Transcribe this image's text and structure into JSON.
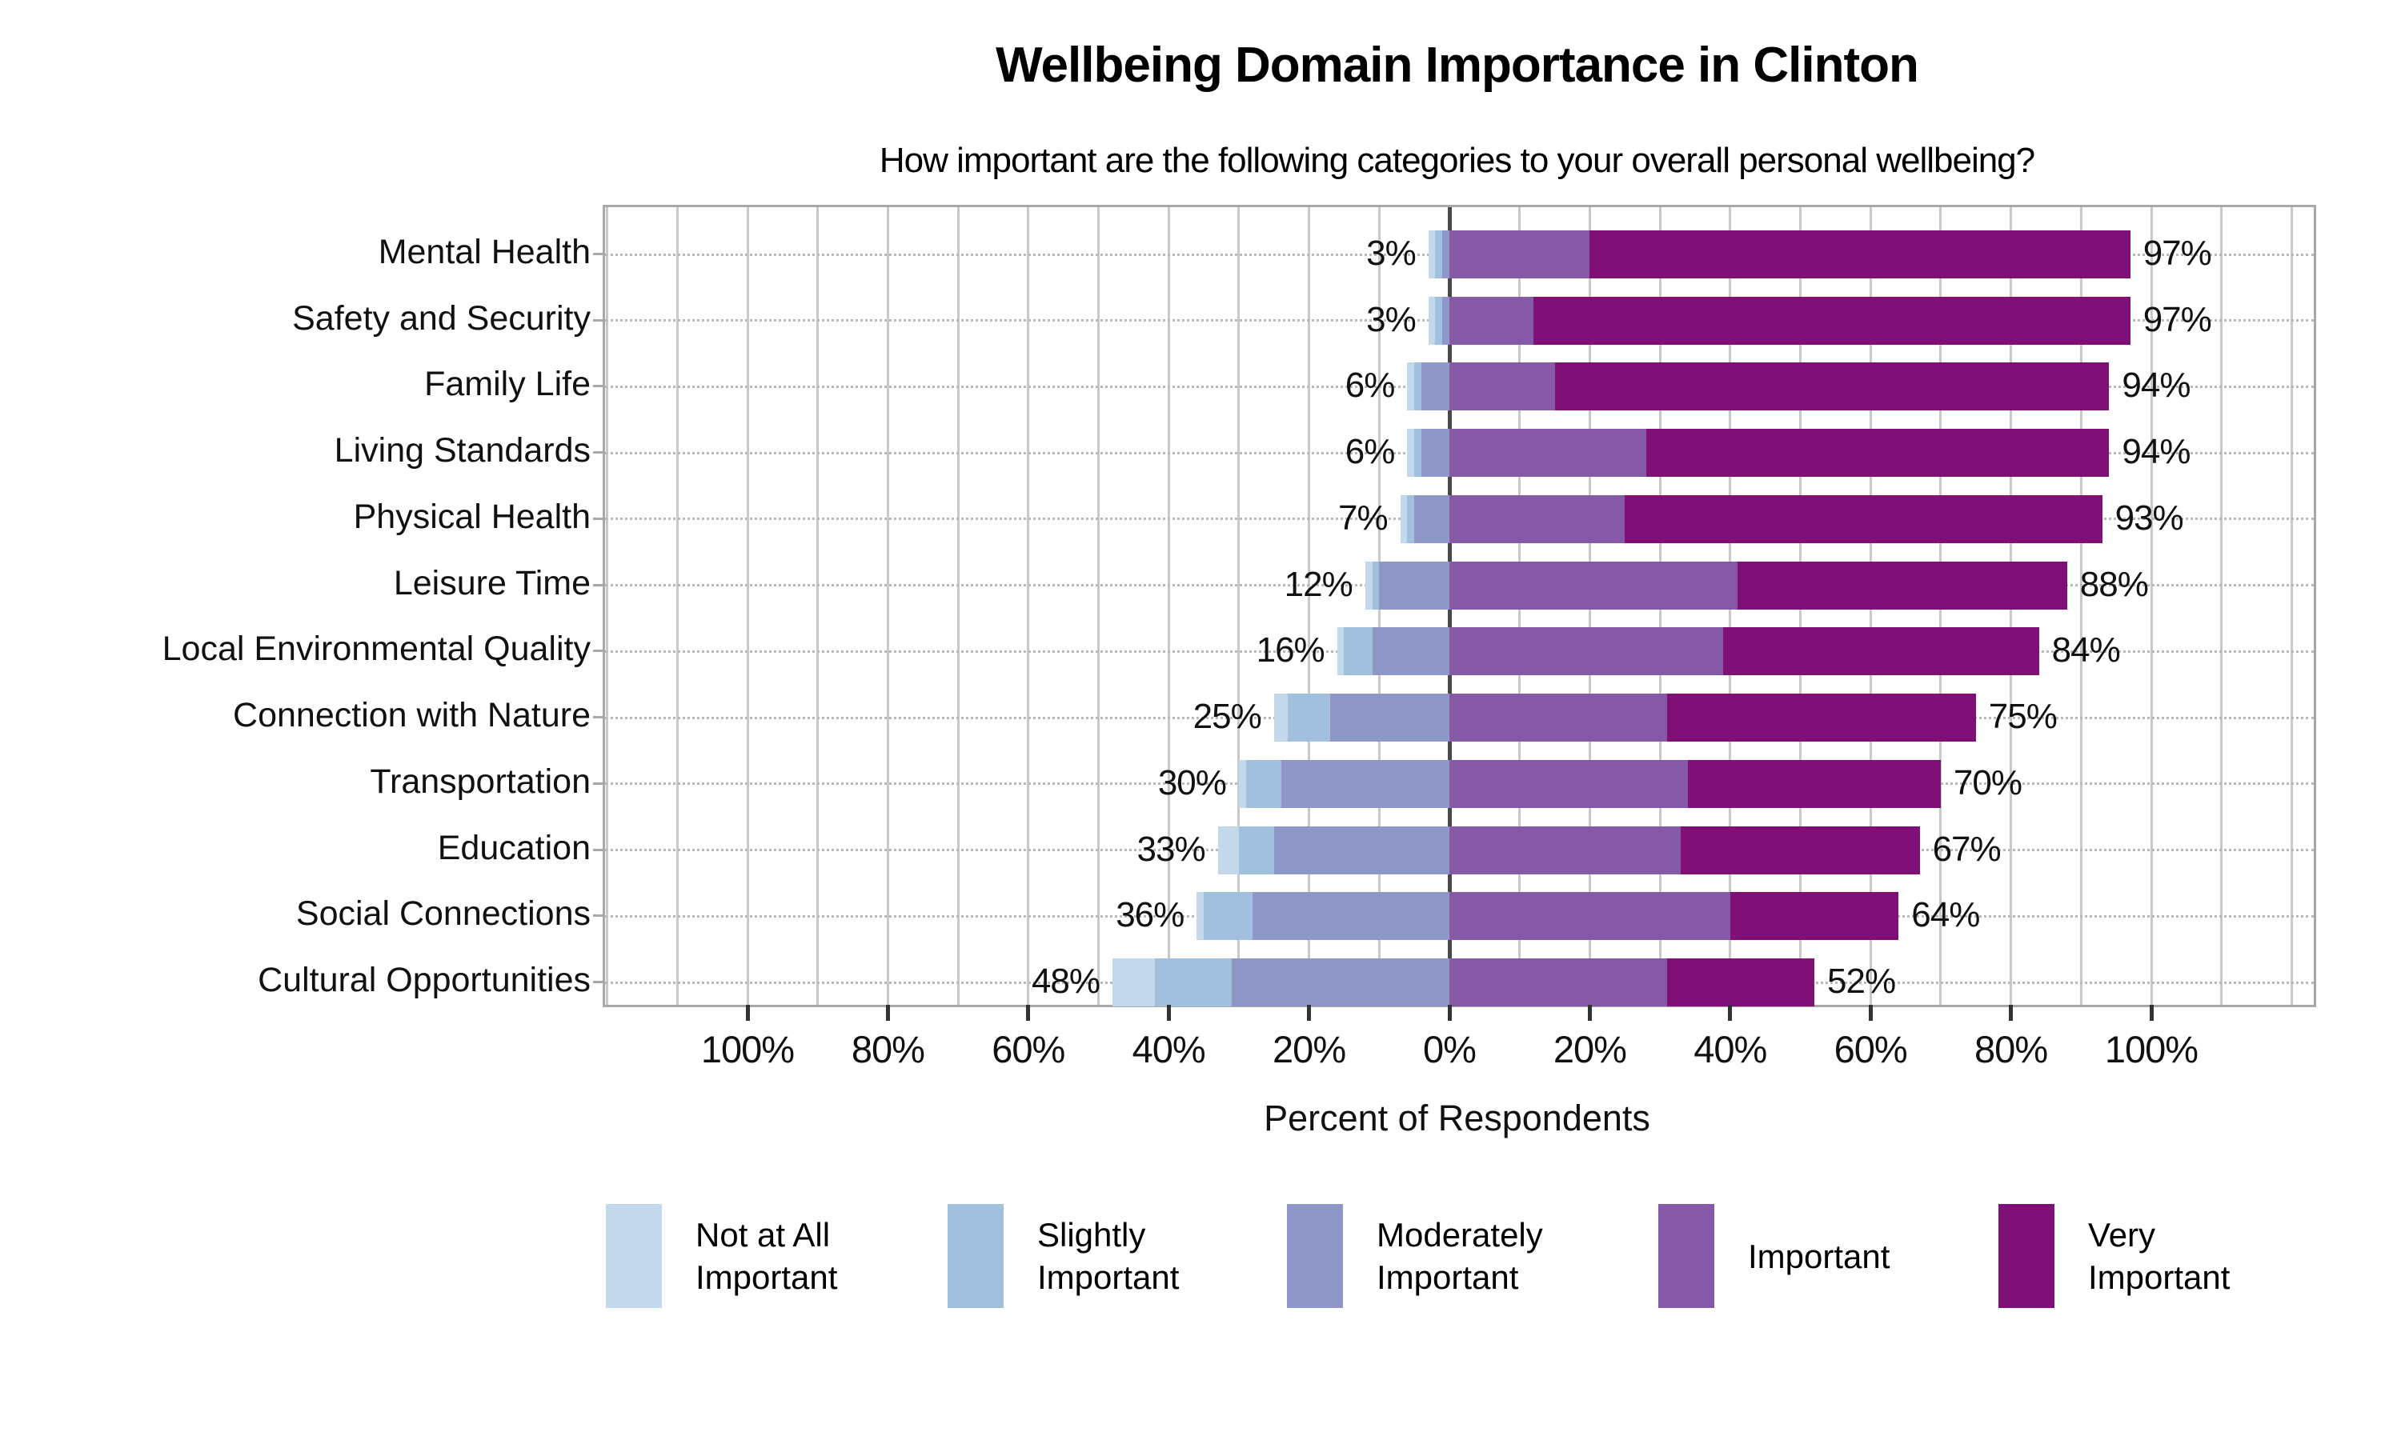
{
  "page": {
    "background": "#ffffff"
  },
  "chart_data": {
    "type": "bar",
    "variant": "diverging-stacked-bar",
    "title": "Wellbeing Domain Importance in Clinton",
    "subtitle": "How important are the following categories to your overall personal wellbeing?",
    "xlabel": "Percent of Respondents",
    "categories": [
      "Mental Health",
      "Safety and Security",
      "Family Life",
      "Living Standards",
      "Physical Health",
      "Leisure Time",
      "Local Environmental Quality",
      "Connection with Nature",
      "Transportation",
      "Education",
      "Social Connections",
      "Cultural Opportunities"
    ],
    "series": [
      {
        "name": "Not at All Important",
        "color": "#C4D8EB",
        "side": "negative",
        "values": [
          1,
          1,
          1,
          1,
          1,
          1,
          1,
          2,
          1,
          3,
          1,
          6
        ]
      },
      {
        "name": "Slightly Important",
        "color": "#A1C0DE",
        "side": "negative",
        "values": [
          1,
          1,
          1,
          1,
          1,
          1,
          4,
          6,
          5,
          5,
          7,
          11
        ]
      },
      {
        "name": "Moderately Important",
        "color": "#8E97C8",
        "side": "negative",
        "values": [
          1,
          1,
          4,
          4,
          5,
          10,
          11,
          17,
          24,
          25,
          28,
          31
        ]
      },
      {
        "name": "Important",
        "color": "#8659A7",
        "side": "positive",
        "values": [
          20,
          12,
          15,
          28,
          25,
          41,
          39,
          31,
          34,
          33,
          40,
          31
        ]
      },
      {
        "name": "Very Important",
        "color": "#7F1078",
        "side": "positive",
        "values": [
          77,
          85,
          79,
          66,
          68,
          47,
          45,
          44,
          36,
          34,
          24,
          21
        ]
      }
    ],
    "low_labels": [
      "3%",
      "3%",
      "6%",
      "6%",
      "7%",
      "12%",
      "16%",
      "25%",
      "30%",
      "33%",
      "36%",
      "48%"
    ],
    "high_labels": [
      "97%",
      "97%",
      "94%",
      "94%",
      "93%",
      "88%",
      "84%",
      "75%",
      "70%",
      "67%",
      "64%",
      "52%"
    ],
    "low_totals": [
      3,
      3,
      6,
      6,
      7,
      12,
      16,
      25,
      30,
      33,
      36,
      48
    ],
    "high_totals": [
      97,
      97,
      94,
      94,
      93,
      88,
      84,
      75,
      70,
      67,
      64,
      52
    ],
    "x_ticks": [
      {
        "value": -100,
        "label": "100%"
      },
      {
        "value": -80,
        "label": "80%"
      },
      {
        "value": -60,
        "label": "60%"
      },
      {
        "value": -40,
        "label": "40%"
      },
      {
        "value": -20,
        "label": "20%"
      },
      {
        "value": 0,
        "label": "0%"
      },
      {
        "value": 20,
        "label": "20%"
      },
      {
        "value": 40,
        "label": "40%"
      },
      {
        "value": 60,
        "label": "60%"
      },
      {
        "value": 80,
        "label": "80%"
      },
      {
        "value": 100,
        "label": "100%"
      }
    ],
    "xlim": [
      -120,
      123
    ],
    "gridline_step_pct": 10,
    "grid": {
      "vertical": "light gray every 10%",
      "zero_line": "dark gray",
      "row_guides": "dotted light gray"
    },
    "legend_position": "bottom"
  },
  "legend": {
    "items": [
      {
        "lines": [
          "Not at All",
          "Important"
        ],
        "color": "#C4D8EB"
      },
      {
        "lines": [
          "Slightly",
          "Important"
        ],
        "color": "#A1C0DE"
      },
      {
        "lines": [
          "Moderately",
          "Important"
        ],
        "color": "#8E97C8"
      },
      {
        "lines": [
          "Important"
        ],
        "color": "#8659A7"
      },
      {
        "lines": [
          "Very",
          "Important"
        ],
        "color": "#7F1078"
      }
    ]
  }
}
